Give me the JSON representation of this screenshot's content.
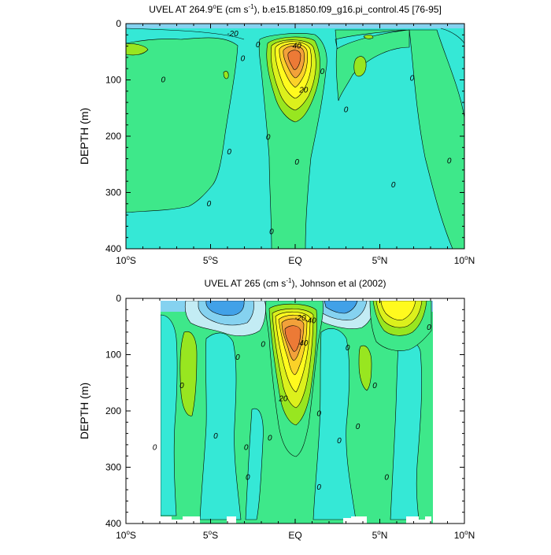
{
  "chart_data": [
    {
      "type": "contour",
      "title": "UVEL AT 264.9°E (cm s⁻¹), b.e15.B1850.f09_g16.pi_control.45 [76-95]",
      "title_parts": {
        "pre": "UVEL AT 264.9",
        "deg": "o",
        "mid": "E (cm s",
        "sup": "-1",
        "post": "), b.e15.B1850.f09_g16.pi_control.45 [76-95]"
      },
      "ylabel": "DEPTH (m)",
      "xlim": [
        -10,
        10
      ],
      "ylim": [
        400,
        0
      ],
      "xticks": [
        -10,
        -5,
        0,
        5,
        10
      ],
      "xtick_labels": [
        {
          "num": "10",
          "deg": "o",
          "hem": "S"
        },
        {
          "num": "5",
          "deg": "o",
          "hem": "S"
        },
        {
          "num": "EQ",
          "deg": "",
          "hem": ""
        },
        {
          "num": "5",
          "deg": "o",
          "hem": "N"
        },
        {
          "num": "10",
          "deg": "o",
          "hem": "N"
        }
      ],
      "yticks": [
        0,
        100,
        200,
        300,
        400
      ],
      "ytick_labels": [
        "0",
        "100",
        "200",
        "300",
        "400"
      ],
      "contour_interval": 10,
      "core": {
        "lat": 0.0,
        "depth": 70,
        "max_speed": 80
      },
      "contour_labels": [
        {
          "text": "-20",
          "lat": -3.7,
          "depth": 18
        },
        {
          "text": "40",
          "lat": 0.1,
          "depth": 40
        },
        {
          "text": "20",
          "lat": 0.5,
          "depth": 118
        },
        {
          "text": "0",
          "lat": -7.8,
          "depth": 100
        },
        {
          "text": "0",
          "lat": -3.1,
          "depth": 62
        },
        {
          "text": "0",
          "lat": -2.2,
          "depth": 38
        },
        {
          "text": "0",
          "lat": 1.6,
          "depth": 85
        },
        {
          "text": "0",
          "lat": 3.0,
          "depth": 153
        },
        {
          "text": "0",
          "lat": 6.9,
          "depth": 97
        },
        {
          "text": "0",
          "lat": -1.6,
          "depth": 202
        },
        {
          "text": "0",
          "lat": -3.9,
          "depth": 228
        },
        {
          "text": "0",
          "lat": 0.1,
          "depth": 246
        },
        {
          "text": "0",
          "lat": 5.8,
          "depth": 287
        },
        {
          "text": "0",
          "lat": 9.1,
          "depth": 244
        },
        {
          "text": "0",
          "lat": -5.1,
          "depth": 320
        },
        {
          "text": "0",
          "lat": -1.4,
          "depth": 370
        }
      ]
    },
    {
      "type": "contour",
      "title": "UVEL AT 265 (cm s⁻¹), Johnson et al (2002)",
      "title_parts": {
        "pre": "UVEL AT 265",
        "deg": "",
        "mid": " (cm s",
        "sup": "-1",
        "post": "), Johnson et al (2002)"
      },
      "ylabel": "DEPTH (m)",
      "xlim": [
        -10,
        10
      ],
      "ylim": [
        400,
        0
      ],
      "xticks": [
        -10,
        -5,
        0,
        5,
        10
      ],
      "xtick_labels": [
        {
          "num": "10",
          "deg": "o",
          "hem": "S"
        },
        {
          "num": "5",
          "deg": "o",
          "hem": "S"
        },
        {
          "num": "EQ",
          "deg": "",
          "hem": ""
        },
        {
          "num": "5",
          "deg": "o",
          "hem": "N"
        },
        {
          "num": "10",
          "deg": "o",
          "hem": "N"
        }
      ],
      "yticks": [
        0,
        100,
        200,
        300,
        400
      ],
      "ytick_labels": [
        "0",
        "100",
        "200",
        "300",
        "400"
      ],
      "data_extent": {
        "lat_min": -8.0,
        "lat_max": 8.0
      },
      "contour_interval": 10,
      "core": {
        "lat": 0.0,
        "depth": 65,
        "max_speed": 90
      },
      "contour_labels": [
        {
          "text": "-20",
          "lat": 0.3,
          "depth": 35
        },
        {
          "text": "-40",
          "lat": 0.9,
          "depth": 40
        },
        {
          "text": "40",
          "lat": 0.5,
          "depth": 80
        },
        {
          "text": "20",
          "lat": -0.7,
          "depth": 178
        },
        {
          "text": "0",
          "lat": -6.7,
          "depth": 155
        },
        {
          "text": "0",
          "lat": -4.7,
          "depth": 245
        },
        {
          "text": "0",
          "lat": -8.3,
          "depth": 265
        },
        {
          "text": "0",
          "lat": -3.4,
          "depth": 105
        },
        {
          "text": "0",
          "lat": -1.9,
          "depth": 82
        },
        {
          "text": "0",
          "lat": -1.5,
          "depth": 248
        },
        {
          "text": "0",
          "lat": -2.9,
          "depth": 265
        },
        {
          "text": "0",
          "lat": -2.8,
          "depth": 318
        },
        {
          "text": "0",
          "lat": 1.4,
          "depth": 205
        },
        {
          "text": "0",
          "lat": 1.4,
          "depth": 336
        },
        {
          "text": "0",
          "lat": 3.1,
          "depth": 88
        },
        {
          "text": "0",
          "lat": 2.6,
          "depth": 253
        },
        {
          "text": "0",
          "lat": 3.7,
          "depth": 228
        },
        {
          "text": "0",
          "lat": 4.7,
          "depth": 155
        },
        {
          "text": "0",
          "lat": 5.4,
          "depth": 318
        },
        {
          "text": "0",
          "lat": 7.9,
          "depth": 52
        }
      ]
    }
  ],
  "colors": {
    "strong_negative": "#41a1e8",
    "negative": "#85d2f0",
    "weak_negative": "#c3ecf4",
    "near_zero": "#35e8d6",
    "weak_positive": "#3ee88a",
    "positive": "#98e620",
    "moderate": "#dcf01c",
    "strong": "#fffa1e",
    "stronger": "#fbd228",
    "core": "#f2a13a",
    "core_max": "#ec7a36",
    "missing": "#ffffff",
    "line": "#000000"
  }
}
